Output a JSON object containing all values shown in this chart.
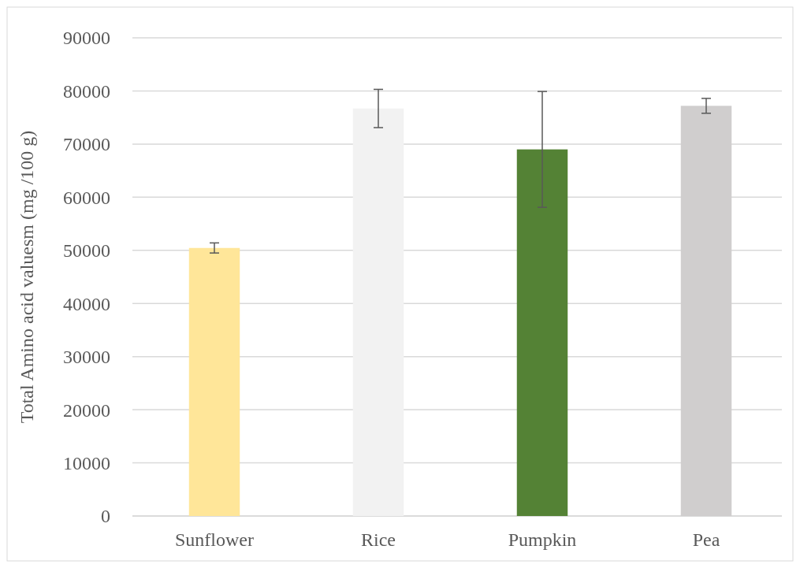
{
  "chart_data": {
    "type": "bar",
    "ylabel": "Total Amino acid valuesm (mg /100 g)",
    "categories": [
      "Sunflower",
      "Rice",
      "Pumpkin",
      "Pea"
    ],
    "values": [
      50450,
      76700,
      69000,
      77200
    ],
    "colors": [
      "#ffe699",
      "#f2f2f2",
      "#548235",
      "#d0cece"
    ],
    "errors": [
      950,
      3600,
      10900,
      1400
    ],
    "ylim": [
      0,
      90000
    ],
    "yticks": [
      0,
      10000,
      20000,
      30000,
      40000,
      50000,
      60000,
      70000,
      80000,
      90000
    ],
    "grid": "y"
  }
}
